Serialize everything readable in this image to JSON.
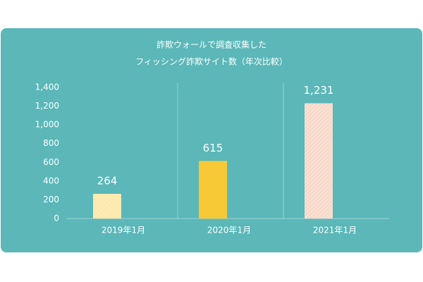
{
  "chart_data": {
    "type": "bar",
    "title": [
      "詐欺ウォールで調査収集した",
      "フィッシング詐欺サイト数（年次比較）"
    ],
    "categories": [
      "2019年1月",
      "2020年1月",
      "2021年1月"
    ],
    "values": [
      264,
      615,
      1231
    ],
    "value_labels": [
      "264",
      "615",
      "1,231"
    ],
    "colors": [
      "#fde8a6",
      "#f7c937",
      "#f8d8c8"
    ],
    "hatch": [
      true,
      false,
      true
    ],
    "ylim": [
      0,
      1400
    ],
    "yticks": [
      0,
      200,
      400,
      600,
      800,
      {
        "value": 1000,
        "label": "1,000"
      },
      {
        "value": 1200,
        "label": "1,200"
      },
      {
        "value": 1400,
        "label": "1,400"
      }
    ]
  }
}
